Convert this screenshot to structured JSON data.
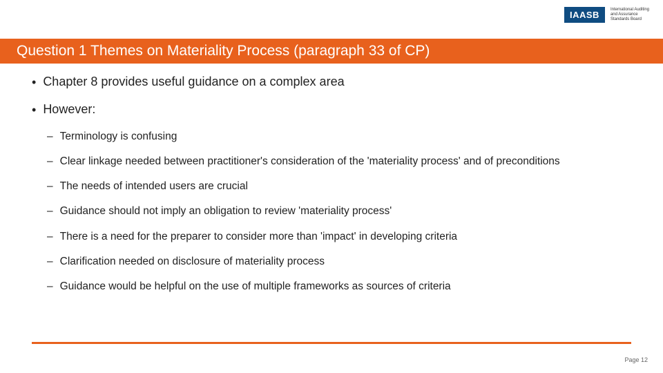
{
  "colors": {
    "accent": "#e8611d",
    "logo_bg": "#0f4c81",
    "text": "#222222",
    "page_num": "#666666",
    "background": "#ffffff"
  },
  "logo": {
    "acronym": "IAASB",
    "line1": "International Auditing",
    "line2": "and Assurance",
    "line3": "Standards Board"
  },
  "title": "Question 1 Themes on Materiality Process (paragraph 33 of CP)",
  "bullets": [
    {
      "text": "Chapter 8 provides useful guidance on a complex area"
    },
    {
      "text": "However:",
      "children": [
        "Terminology is confusing",
        "Clear linkage needed between practitioner's consideration of the 'materiality process' and of preconditions",
        "The needs of intended users are crucial",
        "Guidance should not imply an obligation to review 'materiality process'",
        "There is a need for the preparer to consider more than 'impact' in developing criteria",
        "Clarification needed on disclosure of materiality process",
        "Guidance would be helpful on the use of multiple frameworks as sources of criteria"
      ]
    }
  ],
  "page_label": "Page 12"
}
